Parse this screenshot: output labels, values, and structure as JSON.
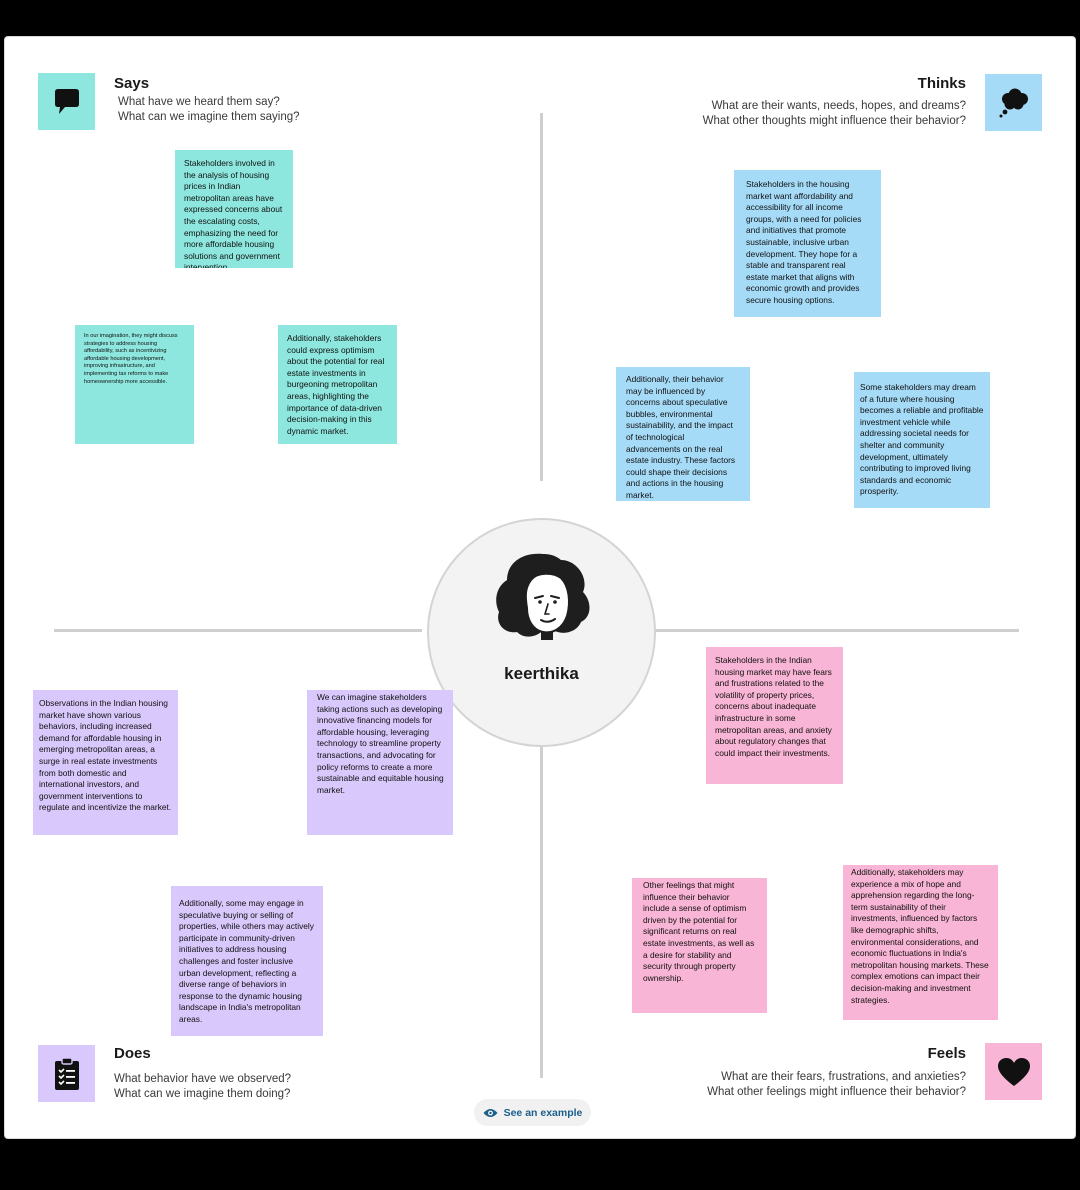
{
  "persona": {
    "name": "keerthika"
  },
  "says": {
    "title": "Says",
    "sub1": "What have we heard them say?",
    "sub2": "What can we imagine them saying?",
    "icon": "speech-bubble-icon",
    "color": "#8ee7de",
    "notes": [
      "Stakeholders involved in the analysis of housing prices in Indian metropolitan areas have expressed concerns about the escalating costs, emphasizing the need for more affordable housing solutions and government intervention.",
      "In our imagination, they might discuss strategies to address housing affordability, such as incentivizing affordable housing development, improving infrastructure, and implementing tax reforms to make homeownership more accessible.",
      "Additionally, stakeholders could express optimism about the potential for real estate investments in burgeoning metropolitan areas, highlighting the importance of data-driven decision-making in this dynamic market."
    ]
  },
  "thinks": {
    "title": "Thinks",
    "sub1": "What are their wants, needs, hopes, and dreams?",
    "sub2": "What other thoughts might influence their behavior?",
    "icon": "thought-bubble-icon",
    "color": "#a6dbf8",
    "notes": [
      "Stakeholders in the housing market want affordability and accessibility for all income groups, with a need for policies and initiatives that promote sustainable, inclusive urban development. They hope for a stable and transparent real estate market that aligns with economic growth and provides secure housing options.",
      "Additionally, their behavior may be influenced by concerns about speculative bubbles, environmental sustainability, and the impact of technological advancements on the real estate industry. These factors could shape their decisions and actions in the housing market.",
      "Some stakeholders may dream of a future where housing becomes a reliable and profitable investment vehicle while addressing societal needs for shelter and community development, ultimately contributing to improved living standards and economic prosperity."
    ]
  },
  "does": {
    "title": "Does",
    "sub1": "What behavior have we observed?",
    "sub2": "What can we imagine them doing?",
    "icon": "clipboard-icon",
    "color": "#d9c8fb",
    "notes": [
      "Observations in the Indian housing market have shown various behaviors, including increased demand for affordable housing in emerging metropolitan areas, a surge in real estate investments from both domestic and international investors, and government interventions to regulate and incentivize the market.",
      "We can imagine stakeholders taking actions such as developing innovative financing models for affordable housing, leveraging technology to streamline property transactions, and advocating for policy reforms to create a more sustainable and equitable housing market.",
      "Additionally, some may engage in speculative buying or selling of properties, while others may actively participate in community-driven initiatives to address housing challenges and foster inclusive urban development, reflecting a diverse range of behaviors in response to the dynamic housing landscape in India's metropolitan areas."
    ]
  },
  "feels": {
    "title": "Feels",
    "sub1": "What are their fears, frustrations, and anxieties?",
    "sub2": "What other feelings might influence their behavior?",
    "icon": "heart-icon",
    "color": "#f8b5d5",
    "notes": [
      "Stakeholders in the Indian housing market may have fears and frustrations related to the volatility of property prices, concerns about inadequate infrastructure in some metropolitan areas, and anxiety about regulatory changes that could impact their investments.",
      "Other feelings that might influence their behavior include a sense of optimism driven by the potential for significant returns on real estate investments, as well as a desire for stability and security through property ownership.",
      "Additionally, stakeholders may experience a mix of hope and apprehension regarding the long-term sustainability of their investments, influenced by factors like demographic shifts, environmental considerations, and economic fluctuations in India's metropolitan housing markets. These complex emotions can impact their decision-making and investment strategies."
    ]
  },
  "example_link": {
    "label": "See an example",
    "icon": "eye-icon"
  }
}
